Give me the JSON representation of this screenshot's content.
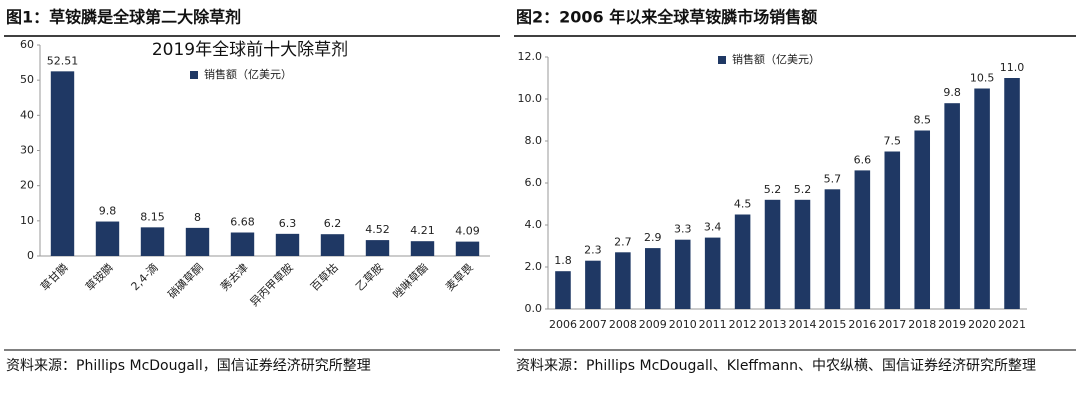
{
  "panels": [
    {
      "caption": "图1：草铵膦是全球第二大除草剂",
      "source": "资料来源：Phillips McDougall，国信证券经济研究所整理"
    },
    {
      "caption": "图2：2006 年以来全球草铵膦市场销售额",
      "source": "资料来源：Phillips McDougall、Kleffmann、中农纵横、国信证券经济研究所整理"
    }
  ],
  "chart_data": [
    {
      "type": "bar",
      "title": "2019年全球前十大除草剂",
      "categories": [
        "草甘膦",
        "草铵膦",
        "2,4-滴",
        "硝磺草酮",
        "莠去津",
        "异丙甲草胺",
        "百草枯",
        "乙草胺",
        "唑啉草酯",
        "麦草畏"
      ],
      "series": [
        {
          "name": "销售额（亿美元）",
          "color": "#1f3864",
          "values": [
            52.51,
            9.8,
            8.15,
            8,
            6.68,
            6.3,
            6.2,
            4.52,
            4.21,
            4.09
          ]
        }
      ],
      "ylim": [
        0,
        60
      ],
      "yticks": [
        0,
        10,
        20,
        30,
        40,
        50,
        60
      ],
      "grid": false
    },
    {
      "type": "bar",
      "categories": [
        "2006",
        "2007",
        "2008",
        "2009",
        "2010",
        "2011",
        "2012",
        "2013",
        "2014",
        "2015",
        "2016",
        "2017",
        "2018",
        "2019",
        "2020",
        "2021"
      ],
      "series": [
        {
          "name": "销售额（亿美元）",
          "color": "#1f3864",
          "values": [
            1.8,
            2.3,
            2.7,
            2.9,
            3.3,
            3.4,
            4.5,
            5.2,
            5.2,
            5.7,
            6.6,
            7.5,
            8.5,
            9.8,
            10.5,
            11.0
          ],
          "value_labels": [
            "1.8",
            "2.3",
            "2.7",
            "2.9",
            "3.3",
            "3.4",
            "4.5",
            "5.2",
            "5.2",
            "5.7",
            "6.6",
            "7.5",
            "8.5",
            "9.8",
            "10.5",
            "11.0"
          ]
        }
      ],
      "ylim": [
        0,
        12
      ],
      "yticks": [
        {
          "value": 0,
          "label": "0.0"
        },
        {
          "value": 2,
          "label": "2.0"
        },
        {
          "value": 4,
          "label": "4.0"
        },
        {
          "value": 6,
          "label": "6.0"
        },
        {
          "value": 8,
          "label": "8.0"
        },
        {
          "value": 10,
          "label": "10.0"
        },
        {
          "value": 12,
          "label": "12.0"
        }
      ],
      "grid": false
    }
  ]
}
